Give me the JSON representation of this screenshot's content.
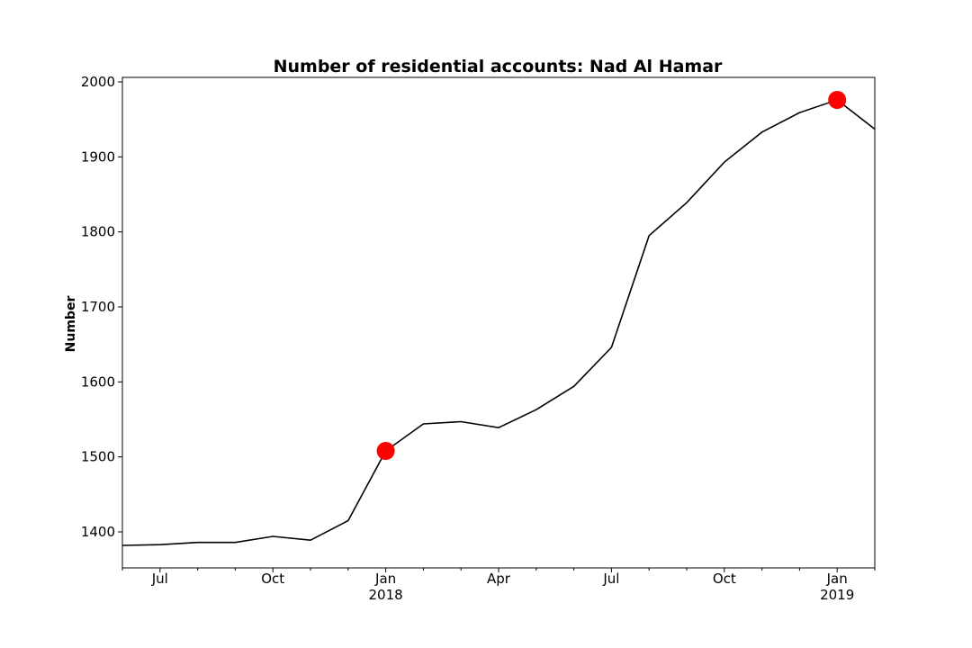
{
  "chart_data": {
    "type": "line",
    "title": "Number of residential accounts: Nad Al Hamar",
    "xlabel": "",
    "ylabel": "Number",
    "x": [
      "2017-06",
      "2017-07",
      "2017-08",
      "2017-09",
      "2017-10",
      "2017-11",
      "2017-12",
      "2018-01",
      "2018-02",
      "2018-03",
      "2018-04",
      "2018-05",
      "2018-06",
      "2018-07",
      "2018-08",
      "2018-09",
      "2018-10",
      "2018-11",
      "2018-12",
      "2019-01",
      "2019-02"
    ],
    "series": [
      {
        "name": "Residential accounts",
        "color": "#000000",
        "values": [
          1382,
          1383,
          1386,
          1386,
          1394,
          1389,
          1415,
          1508,
          1544,
          1547,
          1539,
          1563,
          1594,
          1646,
          1795,
          1839,
          1893,
          1933,
          1959,
          1976,
          1937
        ]
      }
    ],
    "highlights": [
      {
        "x": "2018-01",
        "y": 1508,
        "color": "#ff0000"
      },
      {
        "x": "2019-01",
        "y": 1976,
        "color": "#ff0000"
      }
    ],
    "ylim": [
      1352,
      2006
    ],
    "xlim": [
      0,
      20
    ],
    "yticks": [
      1400,
      1500,
      1600,
      1700,
      1800,
      1900,
      2000
    ],
    "xticks": [
      {
        "index": 1,
        "label": "Jul",
        "sublabel": ""
      },
      {
        "index": 4,
        "label": "Oct",
        "sublabel": ""
      },
      {
        "index": 7,
        "label": "Jan",
        "sublabel": "2018"
      },
      {
        "index": 10,
        "label": "Apr",
        "sublabel": ""
      },
      {
        "index": 13,
        "label": "Jul",
        "sublabel": ""
      },
      {
        "index": 16,
        "label": "Oct",
        "sublabel": ""
      },
      {
        "index": 19,
        "label": "Jan",
        "sublabel": "2019"
      }
    ],
    "grid": false,
    "legend": "none"
  }
}
